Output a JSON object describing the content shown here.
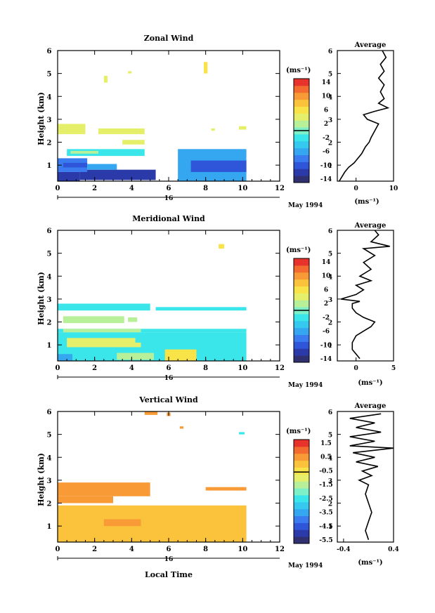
{
  "colors": {
    "scale": [
      "#303070",
      "#2a3aa8",
      "#2f55d8",
      "#3a7cf0",
      "#35a6f0",
      "#35c9f0",
      "#3ae6ea",
      "#7ef0c8",
      "#b8f09a",
      "#e6ef6a",
      "#f8e348",
      "#fbc23c",
      "#f89a35",
      "#f36b2e",
      "#e8322c"
    ],
    "line": "#000000"
  },
  "chart_data": [
    {
      "id": "zonal",
      "type": "heatmap",
      "title": "Zonal Wind",
      "ylabel": "Height (km)",
      "xlim": [
        0,
        12
      ],
      "ylim": [
        0.3,
        6
      ],
      "xticks": [
        "0",
        "2",
        "4",
        "6",
        "8",
        "10",
        "12"
      ],
      "yticks": [
        "1",
        "2",
        "3",
        "4",
        "5",
        "6"
      ],
      "date_label": "16",
      "date_suffix": "May 1994",
      "colorbar": {
        "unit": "(ms⁻¹)",
        "ticks": [
          "14",
          "10",
          "6",
          "2",
          "-2",
          "-6",
          "-10",
          "-14"
        ],
        "range": [
          -16,
          16
        ],
        "zero_line": 0
      },
      "average": {
        "title": "Average",
        "xlabel": "(ms⁻¹)",
        "xticks": [
          "0",
          "10"
        ],
        "xlim": [
          -5,
          10
        ],
        "profile": [
          [
            -4.5,
            0.3
          ],
          [
            -3,
            0.7
          ],
          [
            -2,
            0.9
          ],
          [
            -0.5,
            1.1
          ],
          [
            0.5,
            1.3
          ],
          [
            1.5,
            1.5
          ],
          [
            2.5,
            1.8
          ],
          [
            3.5,
            2.0
          ],
          [
            4,
            2.2
          ],
          [
            5,
            2.5
          ],
          [
            6,
            2.8
          ],
          [
            3,
            3.0
          ],
          [
            2,
            3.2
          ],
          [
            5,
            3.35
          ],
          [
            8.5,
            3.5
          ],
          [
            6,
            3.7
          ],
          [
            7.5,
            3.9
          ],
          [
            6.5,
            4.2
          ],
          [
            7.5,
            4.5
          ],
          [
            6,
            4.8
          ],
          [
            7.5,
            5.1
          ],
          [
            6.5,
            5.4
          ],
          [
            8,
            5.7
          ],
          [
            7,
            6.0
          ]
        ]
      },
      "regions": [
        {
          "x": [
            0,
            1.2
          ],
          "y": [
            0.3,
            0.7
          ],
          "value": -12
        },
        {
          "x": [
            1.2,
            5.3
          ],
          "y": [
            0.35,
            0.8
          ],
          "value": -12
        },
        {
          "x": [
            0,
            1.6
          ],
          "y": [
            0.7,
            1.3
          ],
          "value": -8
        },
        {
          "x": [
            0.3,
            1.6
          ],
          "y": [
            0.9,
            1.1
          ],
          "value": -11
        },
        {
          "x": [
            1.6,
            3.2
          ],
          "y": [
            0.8,
            1.05
          ],
          "value": -6
        },
        {
          "x": [
            6.5,
            10.2
          ],
          "y": [
            0.3,
            1.7
          ],
          "value": -7
        },
        {
          "x": [
            7.2,
            10.2
          ],
          "y": [
            0.7,
            1.2
          ],
          "value": -10
        },
        {
          "x": [
            0.5,
            4.7
          ],
          "y": [
            1.4,
            1.7
          ],
          "value": -2.5
        },
        {
          "x": [
            0.7,
            2.2
          ],
          "y": [
            1.5,
            1.62
          ],
          "value": 2.5
        },
        {
          "x": [
            0,
            1.5
          ],
          "y": [
            2.35,
            2.8
          ],
          "value": 4.5
        },
        {
          "x": [
            2.2,
            4.7
          ],
          "y": [
            2.35,
            2.6
          ],
          "value": 4.5
        },
        {
          "x": [
            3.5,
            4.7
          ],
          "y": [
            1.9,
            2.1
          ],
          "value": 4.5
        },
        {
          "x": [
            9.8,
            10.2
          ],
          "y": [
            2.55,
            2.7
          ],
          "value": 4.5
        },
        {
          "x": [
            2.5,
            2.7
          ],
          "y": [
            4.6,
            4.9
          ],
          "value": 4.5
        },
        {
          "x": [
            3.8,
            4.0
          ],
          "y": [
            5.0,
            5.1
          ],
          "value": 4.5
        },
        {
          "x": [
            7.9,
            8.1
          ],
          "y": [
            5.0,
            5.5
          ],
          "value": 5.5
        },
        {
          "x": [
            8.3,
            8.5
          ],
          "y": [
            2.5,
            2.6
          ],
          "value": 4.5
        }
      ]
    },
    {
      "id": "meridional",
      "type": "heatmap",
      "title": "Meridional Wind",
      "ylabel": "Height (km)",
      "xlim": [
        0,
        12
      ],
      "ylim": [
        0.3,
        6
      ],
      "xticks": [
        "0",
        "2",
        "4",
        "6",
        "8",
        "10",
        "12"
      ],
      "yticks": [
        "1",
        "2",
        "3",
        "4",
        "5",
        "6"
      ],
      "date_label": "16",
      "date_suffix": "May 1994",
      "colorbar": {
        "unit": "(ms⁻¹)",
        "ticks": [
          "14",
          "10",
          "6",
          "2",
          "-2",
          "-6",
          "-10",
          "-14"
        ],
        "range": [
          -16,
          16
        ],
        "zero_line": 0
      },
      "average": {
        "title": "Average",
        "xlabel": "(ms⁻¹)",
        "xticks": [
          "0",
          "5"
        ],
        "xlim": [
          -2.5,
          5
        ],
        "profile": [
          [
            0.5,
            0.4
          ],
          [
            -0.5,
            0.8
          ],
          [
            -0.5,
            1.1
          ],
          [
            0,
            1.4
          ],
          [
            1,
            1.6
          ],
          [
            2,
            1.8
          ],
          [
            2.5,
            2.0
          ],
          [
            1,
            2.2
          ],
          [
            0,
            2.4
          ],
          [
            -0.5,
            2.6
          ],
          [
            -0.5,
            2.8
          ],
          [
            0.5,
            2.9
          ],
          [
            -2,
            3.0
          ],
          [
            0,
            3.2
          ],
          [
            1,
            3.4
          ],
          [
            0,
            3.6
          ],
          [
            2,
            3.8
          ],
          [
            0.5,
            4.0
          ],
          [
            2,
            4.3
          ],
          [
            1,
            4.6
          ],
          [
            2.5,
            4.9
          ],
          [
            1,
            5.2
          ],
          [
            4.5,
            5.3
          ],
          [
            2,
            5.5
          ],
          [
            3,
            5.8
          ],
          [
            2.5,
            6.0
          ]
        ]
      },
      "regions": [
        {
          "x": [
            0,
            10.2
          ],
          "y": [
            0.3,
            1.55
          ],
          "value": -3
        },
        {
          "x": [
            0.5,
            4.5
          ],
          "y": [
            0.9,
            1.3
          ],
          "value": 3.5
        },
        {
          "x": [
            5.8,
            7.5
          ],
          "y": [
            0.3,
            0.8
          ],
          "value": 5.5
        },
        {
          "x": [
            3.2,
            5.2
          ],
          "y": [
            0.35,
            0.65
          ],
          "value": 3
        },
        {
          "x": [
            0,
            0.8
          ],
          "y": [
            0.3,
            0.6
          ],
          "value": -6
        },
        {
          "x": [
            4.2,
            6.5
          ],
          "y": [
            1.1,
            1.35
          ],
          "value": -1.5
        },
        {
          "x": [
            0,
            10.2
          ],
          "y": [
            1.55,
            1.7
          ],
          "value": -1.5
        },
        {
          "x": [
            0.3,
            4.5
          ],
          "y": [
            1.55,
            1.7
          ],
          "value": 2.5
        },
        {
          "x": [
            0.3,
            3.6
          ],
          "y": [
            1.95,
            2.25
          ],
          "value": 2.5
        },
        {
          "x": [
            3.8,
            4.3
          ],
          "y": [
            2.0,
            2.2
          ],
          "value": 2.5
        },
        {
          "x": [
            0,
            5.0
          ],
          "y": [
            2.5,
            2.8
          ],
          "value": -2.5
        },
        {
          "x": [
            5.3,
            10.2
          ],
          "y": [
            2.5,
            2.65
          ],
          "value": -2.5
        },
        {
          "x": [
            8.7,
            9.0
          ],
          "y": [
            5.2,
            5.4
          ],
          "value": 5.5
        }
      ]
    },
    {
      "id": "vertical",
      "type": "heatmap",
      "title": "Vertical Wind",
      "ylabel": "Height (km)",
      "xlabel": "Local Time",
      "xlim": [
        0,
        12
      ],
      "ylim": [
        0.3,
        6
      ],
      "xticks": [
        "0",
        "2",
        "4",
        "6",
        "8",
        "10",
        "12"
      ],
      "yticks": [
        "1",
        "2",
        "3",
        "4",
        "5",
        "6"
      ],
      "date_label": "16",
      "date_suffix": "May 1994",
      "colorbar": {
        "unit": "(ms⁻¹)",
        "ticks": [
          "1.5",
          "0.5",
          "-0.5",
          "-1.5",
          "-2.5",
          "-3.5",
          "-4.5",
          "-5.5"
        ],
        "range": [
          -6,
          2
        ],
        "zero_line": -0.5
      },
      "average": {
        "title": "Average",
        "xlabel": "(ms⁻¹)",
        "xticks": [
          "-0.4",
          "0.4"
        ],
        "xlim": [
          -0.5,
          0.4
        ],
        "profile": [
          [
            0,
            0.4
          ],
          [
            -0.05,
            0.8
          ],
          [
            0,
            1.2
          ],
          [
            0.05,
            1.6
          ],
          [
            0,
            2.0
          ],
          [
            -0.05,
            2.4
          ],
          [
            0,
            2.8
          ],
          [
            -0.15,
            3.0
          ],
          [
            0.05,
            3.2
          ],
          [
            -0.1,
            3.4
          ],
          [
            0.15,
            3.6
          ],
          [
            -0.2,
            3.8
          ],
          [
            0.1,
            4.0
          ],
          [
            -0.25,
            4.2
          ],
          [
            0.4,
            4.4
          ],
          [
            -0.3,
            4.5
          ],
          [
            0.1,
            4.7
          ],
          [
            -0.3,
            4.9
          ],
          [
            0.2,
            5.1
          ],
          [
            -0.2,
            5.3
          ],
          [
            0.1,
            5.5
          ],
          [
            -0.3,
            5.7
          ],
          [
            0.2,
            5.9
          ]
        ]
      },
      "regions": [
        {
          "x": [
            0,
            10.2
          ],
          "y": [
            0.3,
            1.9
          ],
          "value": 0
        },
        {
          "x": [
            2.5,
            4.5
          ],
          "y": [
            1.0,
            1.3
          ],
          "value": 0.5
        },
        {
          "x": [
            0,
            4.5
          ],
          "y": [
            1.3,
            1.5
          ],
          "value": 0.3
        },
        {
          "x": [
            0,
            3.0
          ],
          "y": [
            2.0,
            2.3
          ],
          "value": 0.5
        },
        {
          "x": [
            0,
            5.0
          ],
          "y": [
            2.3,
            2.9
          ],
          "value": 0.7
        },
        {
          "x": [
            8.0,
            10.2
          ],
          "y": [
            2.55,
            2.7
          ],
          "value": 0.7
        },
        {
          "x": [
            4.7,
            5.4
          ],
          "y": [
            5.85,
            6.0
          ],
          "value": 0.5
        },
        {
          "x": [
            5.9,
            6.1
          ],
          "y": [
            5.8,
            5.95
          ],
          "value": 0.5
        },
        {
          "x": [
            6.6,
            6.8
          ],
          "y": [
            5.25,
            5.35
          ],
          "value": 0.5
        },
        {
          "x": [
            9.8,
            10.1
          ],
          "y": [
            5.0,
            5.1
          ],
          "value": -2.5
        }
      ]
    }
  ]
}
